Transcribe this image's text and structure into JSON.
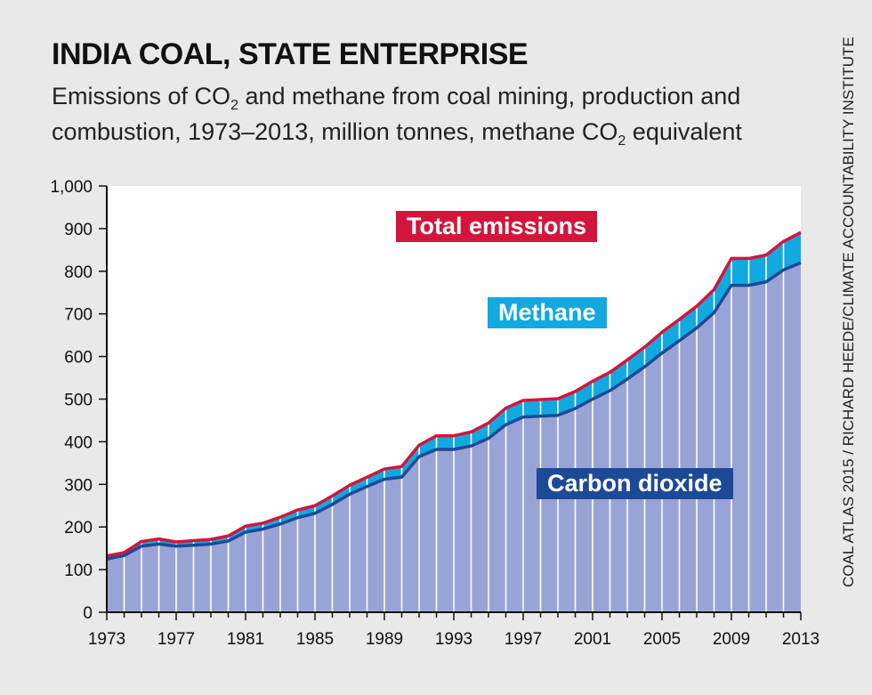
{
  "chart_data": {
    "type": "area",
    "title": "INDIA COAL, STATE ENTERPRISE",
    "subtitle_parts": {
      "a": "Emissions of CO",
      "b": "2",
      "c": " and methane from coal mining, production and combustion, 1973–2013, million tonnes, methane CO",
      "d": "2",
      "e": " equivalent"
    },
    "source": "COAL ATLAS 2015 / RICHARD HEEDE/CLIMATE ACCOUNTABILITY INSTITUTE",
    "xlim": [
      1973,
      2013
    ],
    "ylim": [
      0,
      1000
    ],
    "x_ticks": [
      "1973",
      "1977",
      "1981",
      "1985",
      "1989",
      "1993",
      "1997",
      "2001",
      "2005",
      "2009",
      "2013"
    ],
    "y_ticks": [
      "0",
      "100",
      "200",
      "300",
      "400",
      "500",
      "600",
      "700",
      "800",
      "900",
      "1,000"
    ],
    "grid": "vertical",
    "x": [
      1973,
      1974,
      1975,
      1976,
      1977,
      1978,
      1979,
      1980,
      1981,
      1982,
      1983,
      1984,
      1985,
      1986,
      1987,
      1988,
      1989,
      1990,
      1991,
      1992,
      1993,
      1994,
      1995,
      1996,
      1997,
      1998,
      1999,
      2000,
      2001,
      2002,
      2003,
      2004,
      2005,
      2006,
      2007,
      2008,
      2009,
      2010,
      2011,
      2012,
      2013
    ],
    "series": [
      {
        "name": "Carbon dioxide",
        "color": "#1c4a97",
        "fill": "#9aa3d6",
        "values": [
          125,
          133,
          155,
          160,
          155,
          157,
          160,
          167,
          188,
          195,
          207,
          222,
          232,
          253,
          277,
          295,
          312,
          317,
          365,
          382,
          382,
          390,
          408,
          440,
          458,
          460,
          462,
          478,
          500,
          520,
          547,
          576,
          608,
          637,
          667,
          703,
          767,
          767,
          775,
          803,
          820
        ]
      },
      {
        "name": "Methane",
        "color": "#12a8e0",
        "values": [
          7,
          7,
          11,
          12,
          10,
          11,
          11,
          12,
          14,
          14,
          16,
          18,
          18,
          20,
          21,
          22,
          24,
          25,
          27,
          32,
          32,
          33,
          36,
          39,
          39,
          39,
          39,
          40,
          42,
          43,
          45,
          46,
          49,
          50,
          51,
          54,
          63,
          63,
          63,
          67,
          71
        ]
      },
      {
        "name": "Total emissions",
        "color": "#d4153b",
        "values": [
          132,
          140,
          166,
          172,
          165,
          168,
          171,
          179,
          202,
          209,
          223,
          240,
          250,
          273,
          298,
          317,
          336,
          342,
          392,
          414,
          414,
          423,
          444,
          479,
          497,
          499,
          501,
          518,
          542,
          563,
          592,
          622,
          657,
          687,
          718,
          757,
          830,
          830,
          838,
          870,
          891
        ]
      }
    ],
    "annotations": {
      "total": "Total emissions",
      "methane": "Methane",
      "co2": "Carbon dioxide"
    }
  }
}
